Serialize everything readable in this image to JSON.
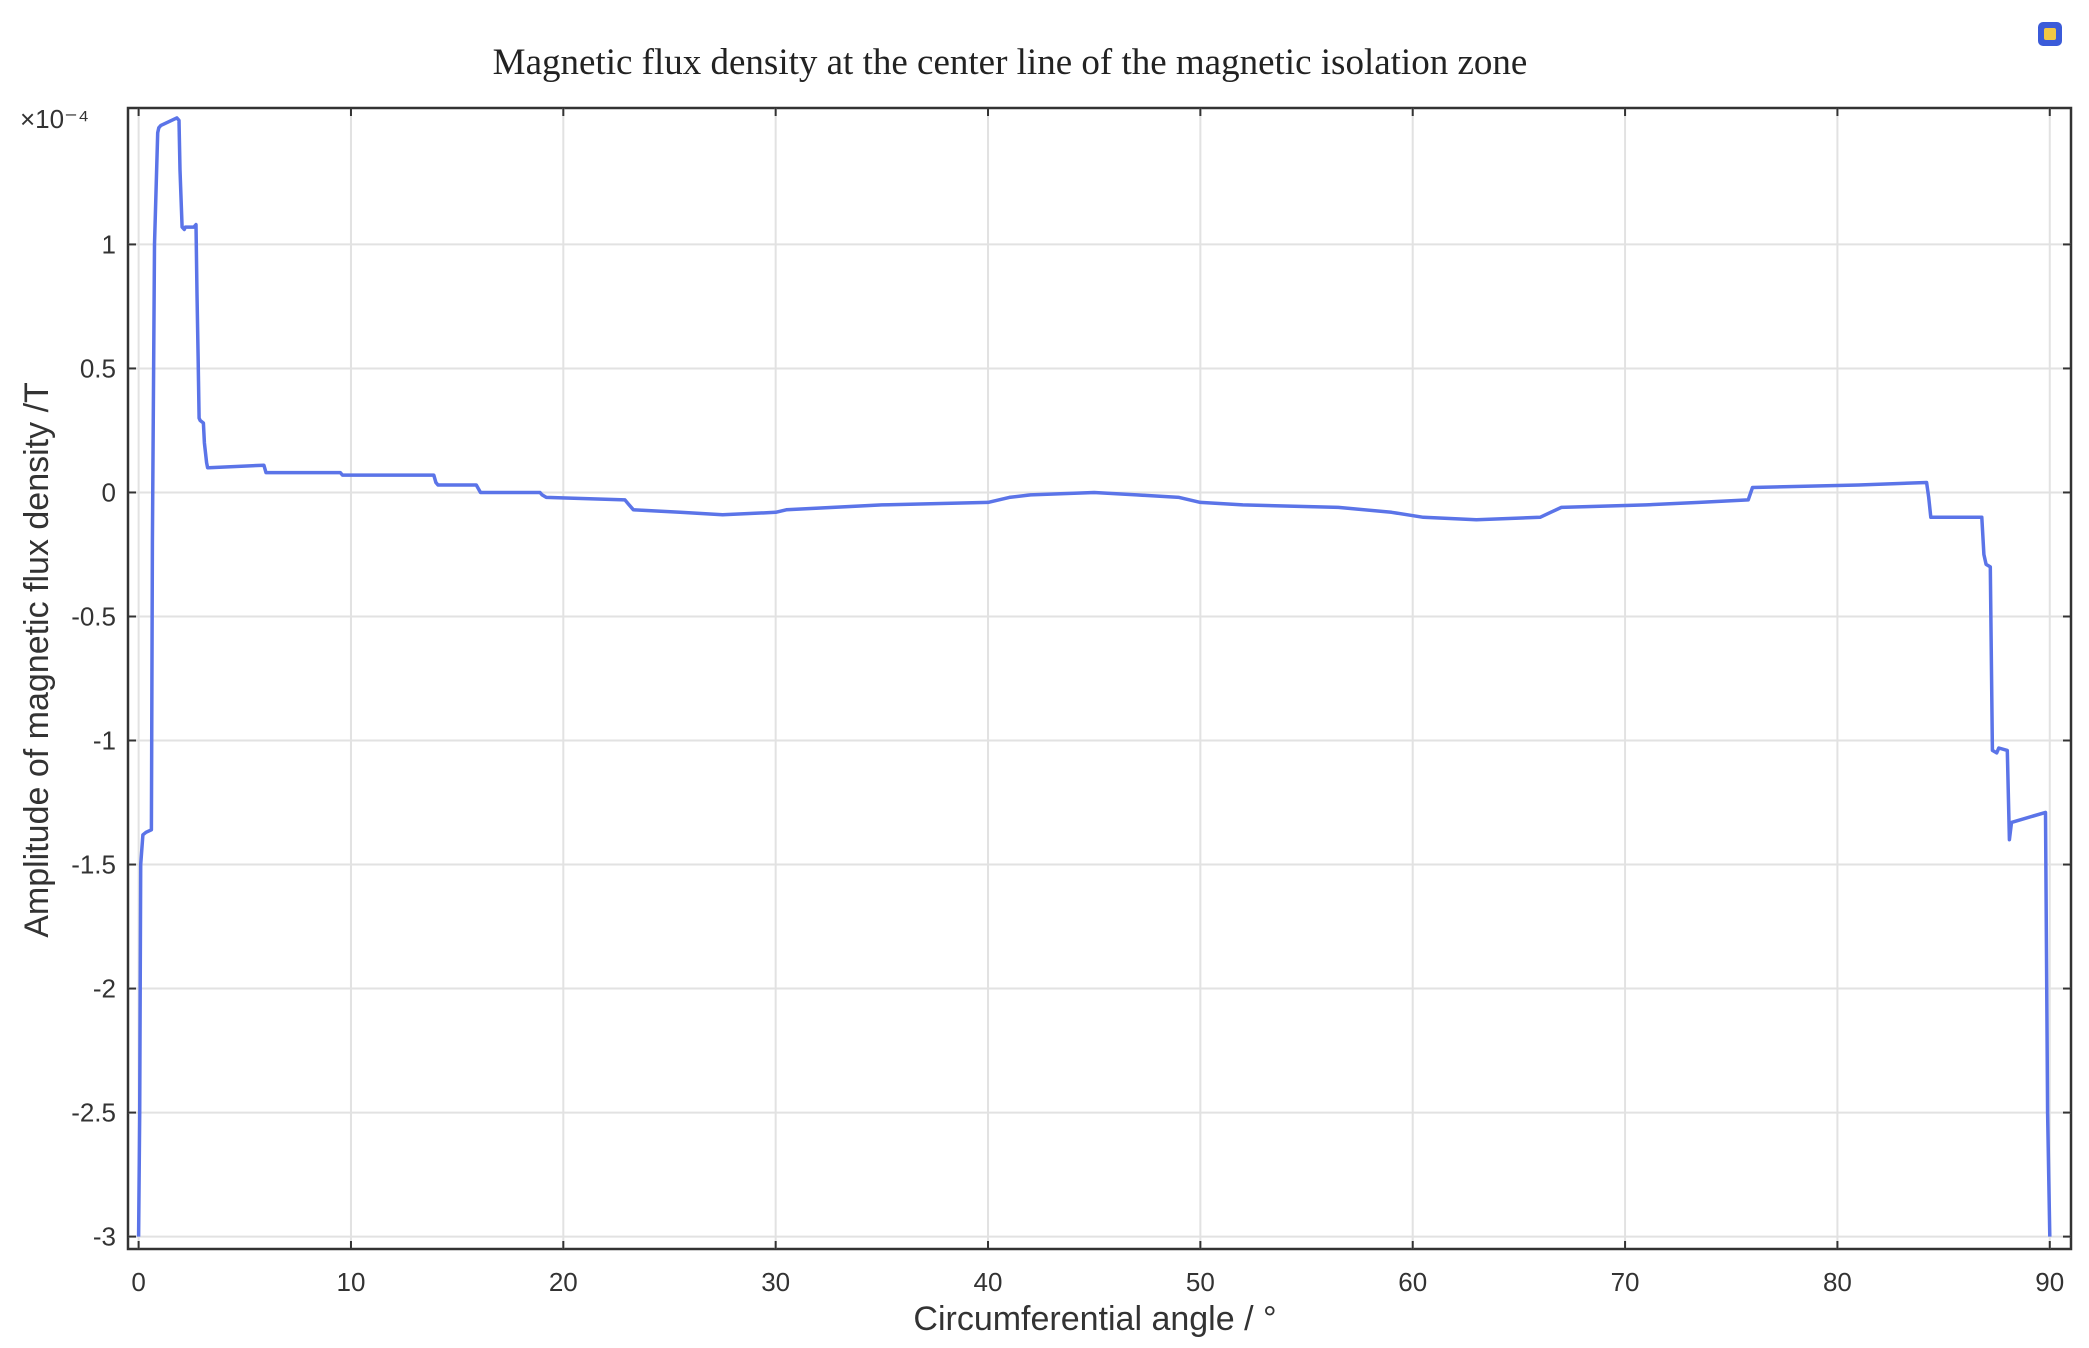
{
  "chart_data": {
    "type": "line",
    "title": "Magnetic flux density at the center line of the magnetic isolation zone",
    "xlabel": "Circumferential angle / °",
    "ylabel": "Amplitude of magnetic flux density /T",
    "y_multiplier": "×10⁻⁴",
    "xlim": [
      -0.5,
      91
    ],
    "ylim": [
      -3.05,
      1.55
    ],
    "x_ticks": [
      0,
      10,
      20,
      30,
      40,
      50,
      60,
      70,
      80,
      90
    ],
    "y_ticks": [
      1,
      0.5,
      0,
      -0.5,
      -1,
      -1.5,
      -2,
      -2.5,
      -3
    ],
    "y_tick_labels": [
      "1",
      "0.5",
      "0",
      "-0.5",
      "-1",
      "-1.5",
      "-2",
      "-2.5",
      "-3"
    ],
    "grid": true,
    "series": [
      {
        "color": "#5b74e8",
        "x": [
          0.0,
          0.05,
          0.1,
          0.2,
          0.35,
          0.6,
          0.65,
          0.75,
          0.9,
          0.95,
          1.05,
          1.8,
          1.9,
          1.95,
          2.05,
          2.15,
          2.2,
          2.3,
          2.6,
          2.7,
          2.75,
          2.8,
          2.85,
          2.9,
          3.05,
          3.1,
          3.2,
          3.25,
          3.3,
          5.9,
          6.0,
          6.1,
          9.5,
          9.6,
          13.9,
          14.0,
          14.1,
          15.9,
          16.1,
          18.9,
          19.0,
          19.2,
          22.9,
          23.1,
          23.3,
          25.5,
          27.5,
          30.0,
          30.5,
          35.0,
          40.0,
          41.0,
          42.0,
          45.0,
          47.0,
          49.0,
          50.0,
          52.0,
          56.5,
          59.0,
          60.5,
          63.0,
          66.0,
          66.5,
          67.0,
          71.0,
          73.5,
          75.8,
          76.0,
          81.0,
          84.2,
          84.3,
          84.4,
          86.8,
          86.9,
          87.0,
          87.2,
          87.3,
          87.5,
          87.6,
          88.0,
          88.1,
          88.2,
          89.8,
          89.9,
          90.0
        ],
        "y": [
          -3.0,
          -2.5,
          -1.5,
          -1.38,
          -1.37,
          -1.36,
          -0.2,
          1.0,
          1.45,
          1.47,
          1.48,
          1.51,
          1.5,
          1.3,
          1.07,
          1.06,
          1.07,
          1.07,
          1.07,
          1.08,
          0.8,
          0.55,
          0.3,
          0.29,
          0.28,
          0.2,
          0.12,
          0.1,
          0.1,
          0.11,
          0.08,
          0.08,
          0.08,
          0.07,
          0.07,
          0.04,
          0.03,
          0.03,
          0.0,
          0.0,
          -0.01,
          -0.02,
          -0.03,
          -0.05,
          -0.07,
          -0.08,
          -0.09,
          -0.08,
          -0.07,
          -0.05,
          -0.04,
          -0.02,
          -0.01,
          0.0,
          -0.01,
          -0.02,
          -0.04,
          -0.05,
          -0.06,
          -0.08,
          -0.1,
          -0.11,
          -0.1,
          -0.08,
          -0.06,
          -0.05,
          -0.04,
          -0.03,
          0.02,
          0.03,
          0.04,
          -0.02,
          -0.1,
          -0.1,
          -0.25,
          -0.29,
          -0.3,
          -1.04,
          -1.05,
          -1.03,
          -1.04,
          -1.4,
          -1.33,
          -1.29,
          -2.5,
          -3.0
        ]
      }
    ]
  }
}
